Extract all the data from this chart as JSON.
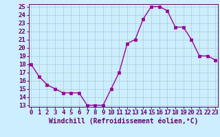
{
  "x": [
    0,
    1,
    2,
    3,
    4,
    5,
    6,
    7,
    8,
    9,
    10,
    11,
    12,
    13,
    14,
    15,
    16,
    17,
    18,
    19,
    20,
    21,
    22,
    23
  ],
  "y": [
    18.0,
    16.5,
    15.5,
    15.0,
    14.5,
    14.5,
    14.5,
    13.0,
    13.0,
    13.0,
    15.0,
    17.0,
    20.5,
    21.0,
    23.5,
    25.0,
    25.0,
    24.5,
    22.5,
    22.5,
    21.0,
    19.0,
    19.0,
    18.5
  ],
  "line_color": "#990099",
  "marker_color": "#990099",
  "bg_color": "#cceeff",
  "grid_color": "#aacccc",
  "xlabel": "Windchill (Refroidissement éolien,°C)",
  "xlabel_color": "#660066",
  "tick_color": "#660066",
  "xlim": [
    0,
    23
  ],
  "ylim": [
    13,
    25
  ],
  "yticks": [
    13,
    14,
    15,
    16,
    17,
    18,
    19,
    20,
    21,
    22,
    23,
    24,
    25
  ],
  "xticks": [
    0,
    1,
    2,
    3,
    4,
    5,
    6,
    7,
    8,
    9,
    10,
    11,
    12,
    13,
    14,
    15,
    16,
    17,
    18,
    19,
    20,
    21,
    22,
    23
  ],
  "xlabel_fontsize": 7.0,
  "tick_fontsize": 6.5,
  "line_width": 1.0,
  "marker_size": 2.5
}
